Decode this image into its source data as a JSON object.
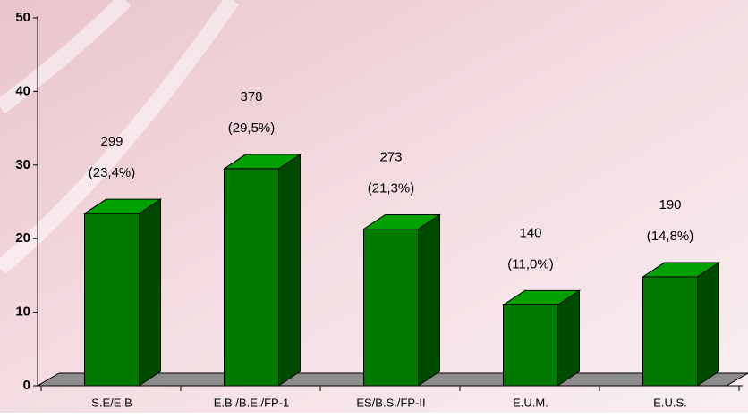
{
  "chart_data": {
    "type": "bar3d",
    "categories": [
      "S.E/E.B",
      "E.B./B.E./FP-1",
      "ES/B.S./FP-II",
      "E.U.M.",
      "E.U.S."
    ],
    "values": [
      23.4,
      29.5,
      21.3,
      11.0,
      14.8
    ],
    "value_labels": [
      "(23,4%)",
      "(29,5%)",
      "(21,3%)",
      "(11,0%)",
      "(14,8%)"
    ],
    "counts": [
      299,
      378,
      273,
      140,
      190
    ],
    "color": "#007a00",
    "ylim": [
      0,
      50
    ],
    "yticks": [
      0,
      10,
      20,
      30,
      40,
      50
    ]
  }
}
